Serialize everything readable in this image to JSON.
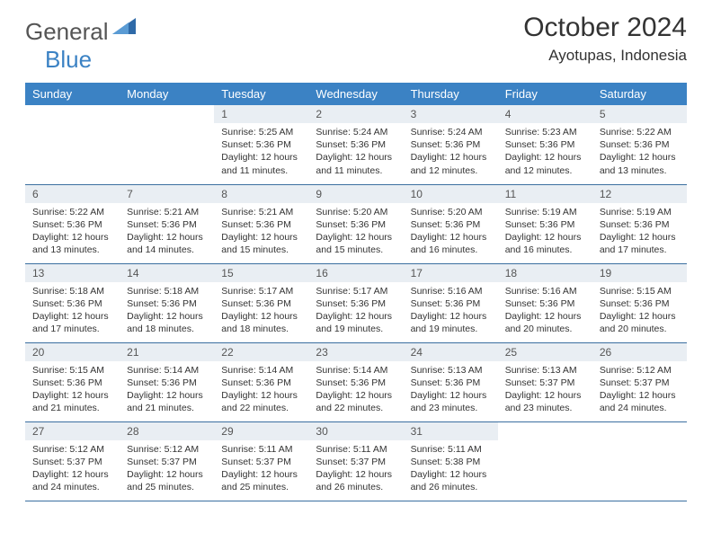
{
  "logo": {
    "text_general": "General",
    "text_blue": "Blue"
  },
  "title": "October 2024",
  "location": "Ayotupas, Indonesia",
  "colors": {
    "header_bg": "#3b82c4",
    "header_text": "#ffffff",
    "daynum_bg": "#e9eef3",
    "border": "#3b6fa0",
    "text": "#333333"
  },
  "weekdays": [
    "Sunday",
    "Monday",
    "Tuesday",
    "Wednesday",
    "Thursday",
    "Friday",
    "Saturday"
  ],
  "weeks": [
    [
      {
        "n": "",
        "sr": "",
        "ss": "",
        "dl": "",
        "empty": true
      },
      {
        "n": "",
        "sr": "",
        "ss": "",
        "dl": "",
        "empty": true
      },
      {
        "n": "1",
        "sr": "Sunrise: 5:25 AM",
        "ss": "Sunset: 5:36 PM",
        "dl": "Daylight: 12 hours and 11 minutes."
      },
      {
        "n": "2",
        "sr": "Sunrise: 5:24 AM",
        "ss": "Sunset: 5:36 PM",
        "dl": "Daylight: 12 hours and 11 minutes."
      },
      {
        "n": "3",
        "sr": "Sunrise: 5:24 AM",
        "ss": "Sunset: 5:36 PM",
        "dl": "Daylight: 12 hours and 12 minutes."
      },
      {
        "n": "4",
        "sr": "Sunrise: 5:23 AM",
        "ss": "Sunset: 5:36 PM",
        "dl": "Daylight: 12 hours and 12 minutes."
      },
      {
        "n": "5",
        "sr": "Sunrise: 5:22 AM",
        "ss": "Sunset: 5:36 PM",
        "dl": "Daylight: 12 hours and 13 minutes."
      }
    ],
    [
      {
        "n": "6",
        "sr": "Sunrise: 5:22 AM",
        "ss": "Sunset: 5:36 PM",
        "dl": "Daylight: 12 hours and 13 minutes."
      },
      {
        "n": "7",
        "sr": "Sunrise: 5:21 AM",
        "ss": "Sunset: 5:36 PM",
        "dl": "Daylight: 12 hours and 14 minutes."
      },
      {
        "n": "8",
        "sr": "Sunrise: 5:21 AM",
        "ss": "Sunset: 5:36 PM",
        "dl": "Daylight: 12 hours and 15 minutes."
      },
      {
        "n": "9",
        "sr": "Sunrise: 5:20 AM",
        "ss": "Sunset: 5:36 PM",
        "dl": "Daylight: 12 hours and 15 minutes."
      },
      {
        "n": "10",
        "sr": "Sunrise: 5:20 AM",
        "ss": "Sunset: 5:36 PM",
        "dl": "Daylight: 12 hours and 16 minutes."
      },
      {
        "n": "11",
        "sr": "Sunrise: 5:19 AM",
        "ss": "Sunset: 5:36 PM",
        "dl": "Daylight: 12 hours and 16 minutes."
      },
      {
        "n": "12",
        "sr": "Sunrise: 5:19 AM",
        "ss": "Sunset: 5:36 PM",
        "dl": "Daylight: 12 hours and 17 minutes."
      }
    ],
    [
      {
        "n": "13",
        "sr": "Sunrise: 5:18 AM",
        "ss": "Sunset: 5:36 PM",
        "dl": "Daylight: 12 hours and 17 minutes."
      },
      {
        "n": "14",
        "sr": "Sunrise: 5:18 AM",
        "ss": "Sunset: 5:36 PM",
        "dl": "Daylight: 12 hours and 18 minutes."
      },
      {
        "n": "15",
        "sr": "Sunrise: 5:17 AM",
        "ss": "Sunset: 5:36 PM",
        "dl": "Daylight: 12 hours and 18 minutes."
      },
      {
        "n": "16",
        "sr": "Sunrise: 5:17 AM",
        "ss": "Sunset: 5:36 PM",
        "dl": "Daylight: 12 hours and 19 minutes."
      },
      {
        "n": "17",
        "sr": "Sunrise: 5:16 AM",
        "ss": "Sunset: 5:36 PM",
        "dl": "Daylight: 12 hours and 19 minutes."
      },
      {
        "n": "18",
        "sr": "Sunrise: 5:16 AM",
        "ss": "Sunset: 5:36 PM",
        "dl": "Daylight: 12 hours and 20 minutes."
      },
      {
        "n": "19",
        "sr": "Sunrise: 5:15 AM",
        "ss": "Sunset: 5:36 PM",
        "dl": "Daylight: 12 hours and 20 minutes."
      }
    ],
    [
      {
        "n": "20",
        "sr": "Sunrise: 5:15 AM",
        "ss": "Sunset: 5:36 PM",
        "dl": "Daylight: 12 hours and 21 minutes."
      },
      {
        "n": "21",
        "sr": "Sunrise: 5:14 AM",
        "ss": "Sunset: 5:36 PM",
        "dl": "Daylight: 12 hours and 21 minutes."
      },
      {
        "n": "22",
        "sr": "Sunrise: 5:14 AM",
        "ss": "Sunset: 5:36 PM",
        "dl": "Daylight: 12 hours and 22 minutes."
      },
      {
        "n": "23",
        "sr": "Sunrise: 5:14 AM",
        "ss": "Sunset: 5:36 PM",
        "dl": "Daylight: 12 hours and 22 minutes."
      },
      {
        "n": "24",
        "sr": "Sunrise: 5:13 AM",
        "ss": "Sunset: 5:36 PM",
        "dl": "Daylight: 12 hours and 23 minutes."
      },
      {
        "n": "25",
        "sr": "Sunrise: 5:13 AM",
        "ss": "Sunset: 5:37 PM",
        "dl": "Daylight: 12 hours and 23 minutes."
      },
      {
        "n": "26",
        "sr": "Sunrise: 5:12 AM",
        "ss": "Sunset: 5:37 PM",
        "dl": "Daylight: 12 hours and 24 minutes."
      }
    ],
    [
      {
        "n": "27",
        "sr": "Sunrise: 5:12 AM",
        "ss": "Sunset: 5:37 PM",
        "dl": "Daylight: 12 hours and 24 minutes."
      },
      {
        "n": "28",
        "sr": "Sunrise: 5:12 AM",
        "ss": "Sunset: 5:37 PM",
        "dl": "Daylight: 12 hours and 25 minutes."
      },
      {
        "n": "29",
        "sr": "Sunrise: 5:11 AM",
        "ss": "Sunset: 5:37 PM",
        "dl": "Daylight: 12 hours and 25 minutes."
      },
      {
        "n": "30",
        "sr": "Sunrise: 5:11 AM",
        "ss": "Sunset: 5:37 PM",
        "dl": "Daylight: 12 hours and 26 minutes."
      },
      {
        "n": "31",
        "sr": "Sunrise: 5:11 AM",
        "ss": "Sunset: 5:38 PM",
        "dl": "Daylight: 12 hours and 26 minutes."
      },
      {
        "n": "",
        "sr": "",
        "ss": "",
        "dl": "",
        "empty": true
      },
      {
        "n": "",
        "sr": "",
        "ss": "",
        "dl": "",
        "empty": true
      }
    ]
  ]
}
